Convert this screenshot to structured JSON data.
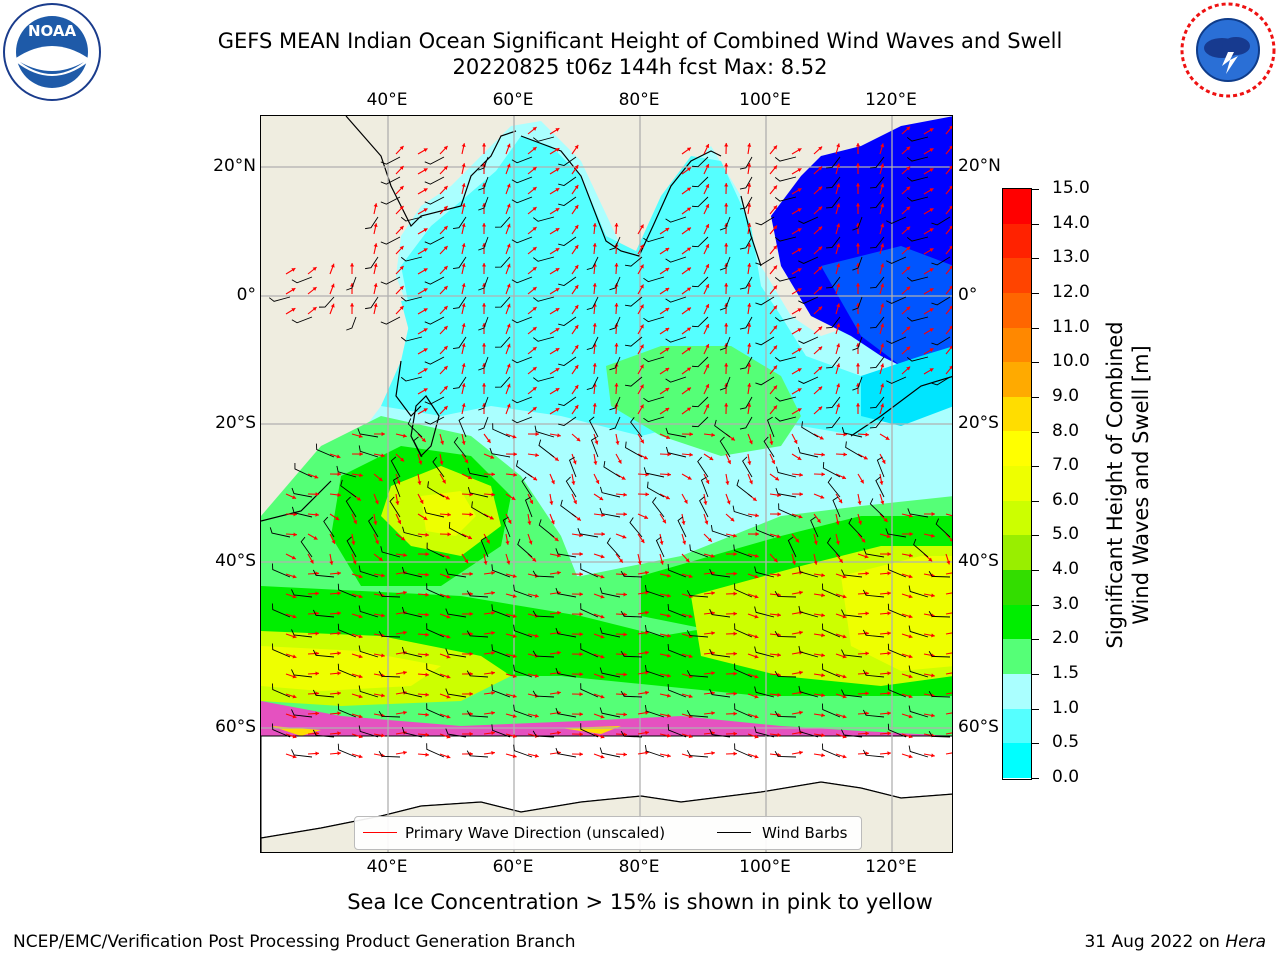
{
  "title": "GEFS MEAN Indian Ocean Significant Height of Combined Wind Waves and Swell",
  "subtitle": "20220825 t06z 144h fcst   Max: 8.52",
  "map": {
    "lon_labels": [
      "40°E",
      "60°E",
      "80°E",
      "100°E",
      "120°E"
    ],
    "lat_labels": [
      "20°N",
      "0°",
      "20°S",
      "40°S",
      "60°S"
    ],
    "land_color": "#efede0",
    "colors": {
      "deep_blue": "#0000ff",
      "blue": "#0055ff",
      "cyan": "#00e5ff",
      "light_cyan": "#aaffff",
      "light_green": "#55ff77",
      "green": "#00ee00",
      "yellow_green": "#ccff00",
      "yellow": "#eeff00",
      "ice_pink": "#ff33cc"
    },
    "legend": {
      "wave_direction_label": "Primary Wave Direction (unscaled)",
      "wind_barbs_label": "Wind Barbs",
      "wave_direction_color": "#ff0000",
      "wind_barbs_color": "#000000"
    }
  },
  "colorbar": {
    "label_line1": "Significant Height of Combined",
    "label_line2": "Wind Waves and Swell [m]",
    "ticks": [
      "15.0",
      "14.0",
      "13.0",
      "12.0",
      "11.0",
      "10.0",
      "9.0",
      "8.0",
      "7.0",
      "6.0",
      "5.0",
      "4.0",
      "3.0",
      "2.0",
      "1.5",
      "1.0",
      "0.5",
      "0.0"
    ],
    "colors": [
      "#ff0000",
      "#ff2200",
      "#ff4400",
      "#ff6600",
      "#ff8800",
      "#ffaa00",
      "#ffdd00",
      "#ffff00",
      "#eeff00",
      "#ccff00",
      "#99ee00",
      "#33dd00",
      "#00ee00",
      "#55ff77",
      "#aaffff",
      "#55ffff",
      "#00ffff",
      "#0088ff",
      "#0000ff"
    ]
  },
  "ice_note": "Sea Ice Concentration > 15% is shown in pink to yellow",
  "footer": {
    "left": "NCEP/EMC/Verification Post Processing Product Generation Branch",
    "right_prefix": "31 Aug 2022 on ",
    "right_machine": "Hera"
  },
  "logos": {
    "noaa_text": "NOAA",
    "noaa_ring": "NATIONAL OCEANIC AND ATMOSPHERIC ADMINISTRATION · U.S. DEPARTMENT OF COMMERCE",
    "nws_ring": "NATIONAL WEATHER SERVICE"
  }
}
